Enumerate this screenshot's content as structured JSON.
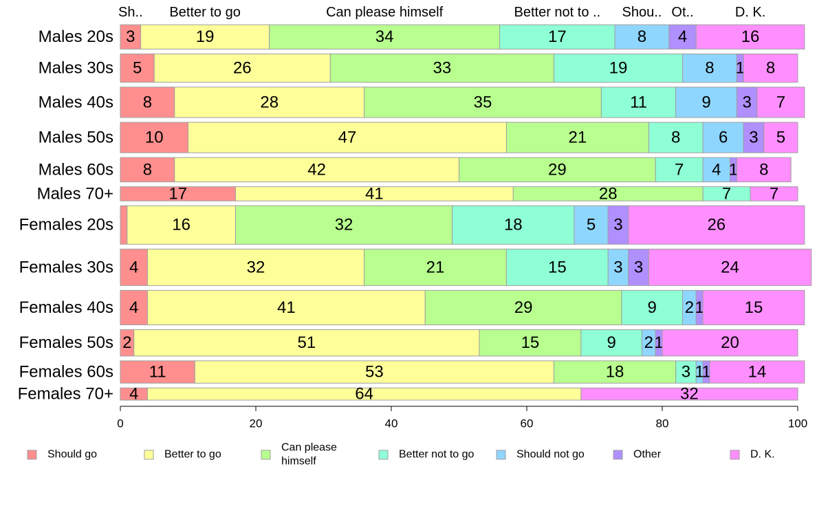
{
  "chart_data": {
    "type": "bar",
    "orientation": "horizontal",
    "stacked": true,
    "title": "",
    "xlabel": "",
    "ylabel": "",
    "xlim": [
      0,
      100
    ],
    "xticks": [
      "0",
      "20",
      "40",
      "60",
      "80",
      "100"
    ],
    "grid": false,
    "legend_position": "bottom",
    "categories": [
      "Males 20s",
      "Males 30s",
      "Males 40s",
      "Males 50s",
      "Males 60s",
      "Males 70+",
      "Females 20s",
      "Females 30s",
      "Females 40s",
      "Females 50s",
      "Females 60s",
      "Females 70+"
    ],
    "row_weights": [
      1.2,
      1.4,
      1.5,
      1.5,
      1.2,
      0.7,
      1.9,
      1.8,
      1.7,
      1.3,
      1.1,
      0.6
    ],
    "series": [
      {
        "name": "Should go",
        "short_label": "Sh..",
        "color": "#ff8f8f",
        "values": [
          3,
          5,
          8,
          10,
          8,
          17,
          1,
          4,
          4,
          2,
          11,
          4
        ],
        "labels": [
          "3",
          "5",
          "8",
          "10",
          "8",
          "17",
          "",
          "4",
          "4",
          "2",
          "11",
          "4"
        ]
      },
      {
        "name": "Better to go",
        "short_label": "Better to go",
        "color": "#ffff9a",
        "values": [
          19,
          26,
          28,
          47,
          42,
          41,
          16,
          32,
          41,
          51,
          53,
          64
        ],
        "labels": [
          "19",
          "26",
          "28",
          "47",
          "42",
          "41",
          "16",
          "32",
          "41",
          "51",
          "53",
          "64"
        ]
      },
      {
        "name": "Can please himself",
        "short_label": "Can please himself",
        "color": "#b8ff8f",
        "values": [
          34,
          33,
          35,
          21,
          29,
          28,
          32,
          21,
          29,
          15,
          18,
          0
        ],
        "labels": [
          "34",
          "33",
          "35",
          "21",
          "29",
          "28",
          "32",
          "21",
          "29",
          "15",
          "18",
          ""
        ]
      },
      {
        "name": "Better not to go",
        "short_label": "Better not to ..",
        "color": "#8fffd6",
        "values": [
          17,
          19,
          11,
          8,
          7,
          7,
          18,
          15,
          9,
          9,
          3,
          0
        ],
        "labels": [
          "17",
          "19",
          "11",
          "8",
          "7",
          "7",
          "18",
          "15",
          "9",
          "9",
          "3",
          ""
        ]
      },
      {
        "name": "Should not go",
        "short_label": "Shou..",
        "color": "#8fd6ff",
        "values": [
          8,
          8,
          9,
          6,
          4,
          0,
          5,
          3,
          2,
          2,
          1,
          0
        ],
        "labels": [
          "8",
          "8",
          "9",
          "6",
          "4",
          "",
          "5",
          "3",
          "2",
          "2",
          "1",
          ""
        ]
      },
      {
        "name": "Other",
        "short_label": "Ot..",
        "color": "#b08fff",
        "values": [
          4,
          1,
          3,
          3,
          1,
          0,
          3,
          3,
          1,
          1,
          1,
          0
        ],
        "labels": [
          "4",
          "1",
          "3",
          "3",
          "1",
          "",
          "3",
          "3",
          "1",
          "1",
          "1",
          ""
        ]
      },
      {
        "name": "D. K.",
        "short_label": "D. K.",
        "color": "#ff8fff",
        "values": [
          16,
          8,
          7,
          5,
          8,
          7,
          26,
          24,
          15,
          20,
          14,
          32
        ],
        "labels": [
          "16",
          "8",
          "7",
          "5",
          "8",
          "7",
          "26",
          "24",
          "15",
          "20",
          "14",
          "32"
        ]
      }
    ],
    "legend": [
      {
        "lines": [
          "Should go"
        ],
        "color": "#ff8f8f"
      },
      {
        "lines": [
          "Better to go"
        ],
        "color": "#ffff9a"
      },
      {
        "lines": [
          "Can please",
          "himself"
        ],
        "color": "#b8ff8f"
      },
      {
        "lines": [
          "Better not to go"
        ],
        "color": "#8fffd6"
      },
      {
        "lines": [
          "Should not go"
        ],
        "color": "#8fd6ff"
      },
      {
        "lines": [
          "Other"
        ],
        "color": "#b08fff"
      },
      {
        "lines": [
          "D. K."
        ],
        "color": "#ff8fff"
      }
    ]
  }
}
